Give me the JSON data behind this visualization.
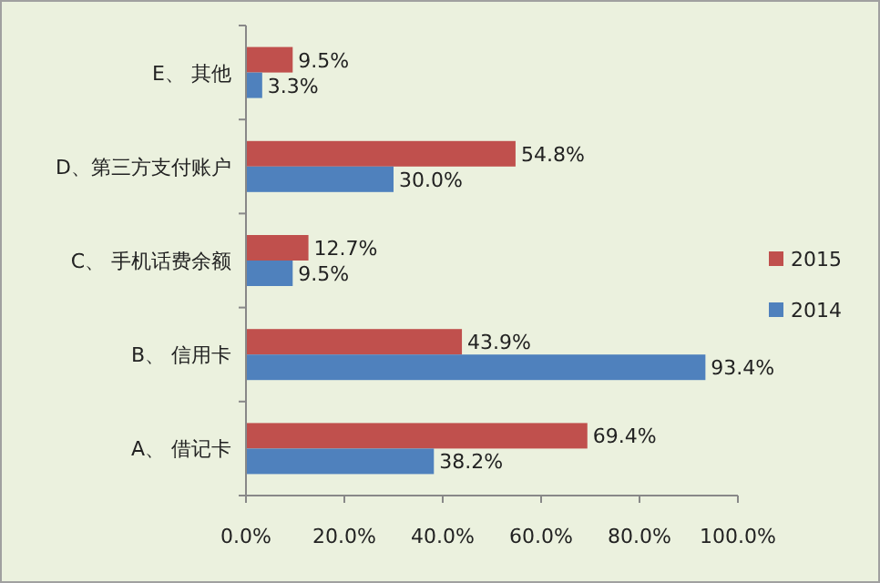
{
  "chart_data": {
    "type": "bar",
    "orientation": "horizontal",
    "categories": [
      "E、 其他",
      "D、第三方支付账户",
      "C、 手机话费余额",
      "B、 信用卡",
      "A、 借记卡"
    ],
    "series": [
      {
        "name": "2015",
        "color": "#c0504d",
        "values": [
          9.5,
          54.8,
          12.7,
          43.9,
          69.4
        ],
        "value_labels": [
          "9.5%",
          "54.8%",
          "12.7%",
          "43.9%",
          "69.4%"
        ]
      },
      {
        "name": "2014",
        "color": "#4f81bd",
        "values": [
          3.3,
          30.0,
          9.5,
          93.4,
          38.2
        ],
        "value_labels": [
          "3.3%",
          "30.0%",
          "9.5%",
          "93.4%",
          "38.2%"
        ]
      }
    ],
    "xlim": [
      0,
      100
    ],
    "xticks": [
      {
        "value": 0,
        "label": "0.0%"
      },
      {
        "value": 20,
        "label": "20.0%"
      },
      {
        "value": 40,
        "label": "40.0%"
      },
      {
        "value": 60,
        "label": "60.0%"
      },
      {
        "value": 80,
        "label": "80.0%"
      },
      {
        "value": 100,
        "label": "100.0%"
      }
    ],
    "grid": false,
    "legend": "right"
  }
}
